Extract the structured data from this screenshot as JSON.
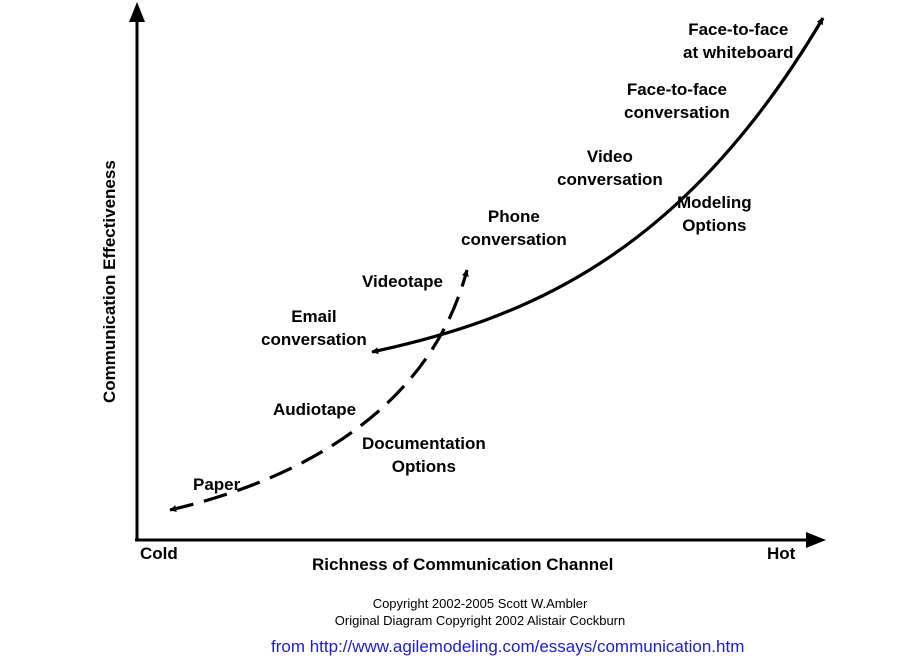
{
  "axes": {
    "y_title": "Communication Effectiveness",
    "x_title": "Richness of Communication Channel",
    "x_min_label": "Cold",
    "x_max_label": "Hot"
  },
  "curves": {
    "modeling": {
      "label": [
        "Modeling",
        "Options"
      ],
      "line_style": "solid",
      "points": [
        {
          "name": "Email",
          "lines": [
            "Email",
            "conversation"
          ]
        },
        {
          "name": "Phone",
          "lines": [
            "Phone",
            "conversation"
          ]
        },
        {
          "name": "Video",
          "lines": [
            "Video",
            "conversation"
          ]
        },
        {
          "name": "Face-to-face conversation",
          "lines": [
            "Face-to-face",
            "conversation"
          ]
        },
        {
          "name": "Face-to-face at whiteboard",
          "lines": [
            "Face-to-face",
            "at whiteboard"
          ]
        }
      ]
    },
    "documentation": {
      "label": [
        "Documentation",
        "Options"
      ],
      "line_style": "dashed",
      "points": [
        {
          "name": "Paper",
          "lines": [
            "Paper"
          ]
        },
        {
          "name": "Audiotape",
          "lines": [
            "Audiotape"
          ]
        },
        {
          "name": "Videotape",
          "lines": [
            "Videotape"
          ]
        }
      ]
    }
  },
  "copyright": [
    "Copyright 2002-2005 Scott W.Ambler",
    "Original Diagram Copyright 2002 Alistair Cockburn"
  ],
  "source": "from http://www.agilemodeling.com/essays/communication.htm",
  "colors": {
    "ink": "#000000",
    "source_link": "#1c1cd6"
  }
}
